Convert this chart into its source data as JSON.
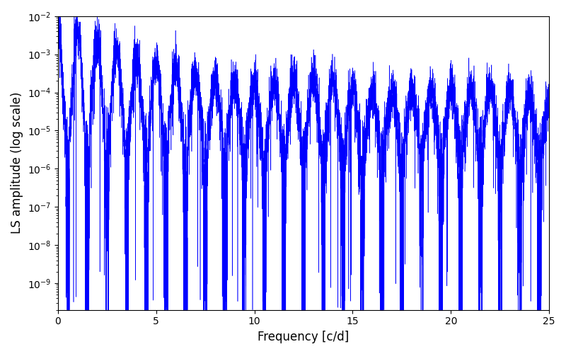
{
  "xlabel": "Frequency [c/d]",
  "ylabel": "LS amplitude (log scale)",
  "line_color": "#0000ff",
  "xlim": [
    0,
    25
  ],
  "ylim_log": [
    -9.7,
    -2
  ],
  "freq_max": 25.0,
  "n_points": 8000,
  "seed": 17,
  "figsize": [
    8.0,
    5.0
  ],
  "dpi": 100,
  "bg_color": "#ffffff"
}
